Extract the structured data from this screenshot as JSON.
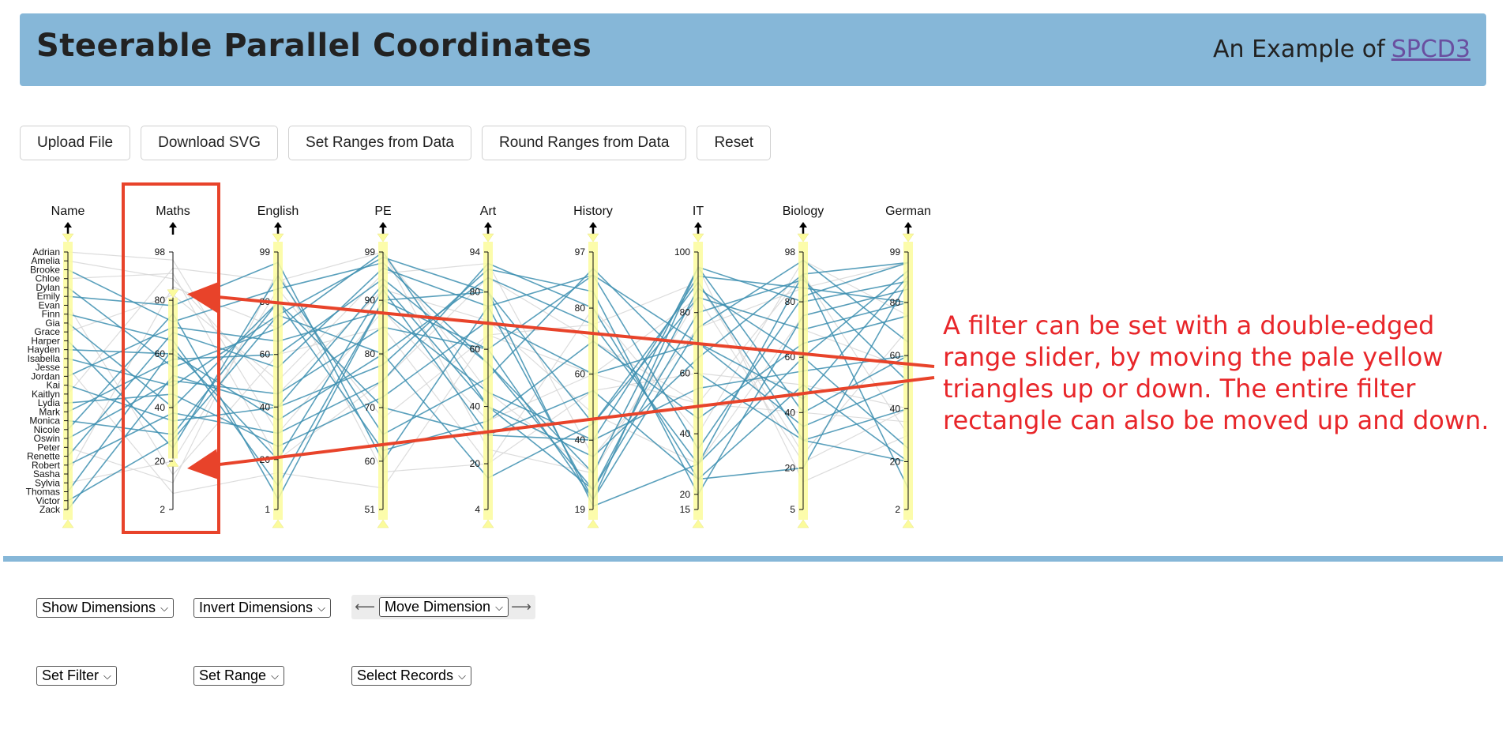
{
  "header": {
    "title": "Steerable Parallel Coordinates",
    "subtitle_prefix": "An Example of",
    "subtitle_link": "SPCD3"
  },
  "toolbar": {
    "upload": "Upload File",
    "download": "Download SVG",
    "set_ranges": "Set Ranges from Data",
    "round_ranges": "Round Ranges from Data",
    "reset": "Reset"
  },
  "controls": {
    "show_dimensions": "Show Dimensions",
    "invert_dimensions": "Invert Dimensions",
    "move_dimension": "Move Dimension",
    "set_filter": "Set Filter",
    "set_range": "Set Range",
    "select_records": "Select Records",
    "move_left_icon": "arrow-left-icon",
    "move_right_icon": "arrow-right-icon"
  },
  "annotation": {
    "lines": [
      "A filter can be set with a double-edged",
      "range slider, by moving the pale yellow",
      "triangles up or down. The entire filter",
      "rectangle can also be moved up and down."
    ]
  },
  "colors": {
    "header_bg": "#86b7d8",
    "selected_line": "#3d8fb0",
    "unselected_line": "#d8d8d8",
    "filter_fill": "#fbfb9c",
    "annotation": "#e8262a",
    "highlight_box": "#e8432a"
  },
  "chart_data": {
    "type": "parallel-coordinates",
    "dimensions": [
      {
        "name": "Name",
        "type": "categorical",
        "values": [
          "Adrian",
          "Amelia",
          "Brooke",
          "Chloe",
          "Dylan",
          "Emily",
          "Evan",
          "Finn",
          "Gia",
          "Grace",
          "Harper",
          "Hayden",
          "Isabella",
          "Jesse",
          "Jordan",
          "Kai",
          "Kaitlyn",
          "Lydia",
          "Mark",
          "Monica",
          "Nicole",
          "Oswin",
          "Peter",
          "Renette",
          "Robert",
          "Sasha",
          "Sylvia",
          "Thomas",
          "Victor",
          "Zack"
        ],
        "filter": null
      },
      {
        "name": "Maths",
        "range": [
          2,
          98
        ],
        "ticks": [
          98,
          80,
          60,
          40,
          20,
          2
        ],
        "filter": [
          21,
          81
        ]
      },
      {
        "name": "English",
        "range": [
          1,
          99
        ],
        "ticks": [
          99,
          80,
          60,
          40,
          20,
          1
        ],
        "filter": null
      },
      {
        "name": "PE",
        "range": [
          51,
          99
        ],
        "ticks": [
          99,
          90,
          80,
          70,
          60,
          51
        ],
        "filter": null
      },
      {
        "name": "Art",
        "range": [
          4,
          94
        ],
        "ticks": [
          94,
          80,
          60,
          40,
          20,
          4
        ],
        "filter": null
      },
      {
        "name": "History",
        "range": [
          19,
          97
        ],
        "ticks": [
          97,
          80,
          60,
          40,
          19
        ],
        "filter": null
      },
      {
        "name": "IT",
        "range": [
          15,
          100
        ],
        "ticks": [
          100,
          80,
          60,
          40,
          20,
          15
        ],
        "filter": null
      },
      {
        "name": "Biology",
        "range": [
          5,
          98
        ],
        "ticks": [
          98,
          80,
          60,
          40,
          20,
          5
        ],
        "filter": null
      },
      {
        "name": "German",
        "range": [
          2,
          99
        ],
        "ticks": [
          99,
          80,
          60,
          40,
          20,
          2
        ],
        "filter": null
      }
    ],
    "records": [
      {
        "name": "Adrian",
        "values": [
          95,
          30,
          88,
          35,
          60,
          85,
          22,
          40
        ]
      },
      {
        "name": "Amelia",
        "values": [
          88,
          45,
          92,
          70,
          48,
          30,
          75,
          85
        ]
      },
      {
        "name": "Brooke",
        "values": [
          72,
          85,
          97,
          55,
          30,
          95,
          40,
          60
        ]
      },
      {
        "name": "Chloe",
        "values": [
          90,
          20,
          75,
          85,
          70,
          50,
          90,
          30
        ]
      },
      {
        "name": "Dylan",
        "values": [
          55,
          70,
          99,
          40,
          25,
          88,
          60,
          92
        ]
      },
      {
        "name": "Emily",
        "values": [
          78,
          95,
          60,
          75,
          90,
          70,
          35,
          50
        ]
      },
      {
        "name": "Evan",
        "values": [
          15,
          60,
          85,
          20,
          80,
          40,
          95,
          75
        ]
      },
      {
        "name": "Finn",
        "values": [
          65,
          10,
          90,
          60,
          22,
          95,
          80,
          88
        ]
      },
      {
        "name": "Gia",
        "values": [
          40,
          80,
          70,
          30,
          55,
          25,
          50,
          20
        ]
      },
      {
        "name": "Grace",
        "values": [
          82,
          50,
          95,
          90,
          35,
          75,
          85,
          95
        ]
      },
      {
        "name": "Harper",
        "values": [
          25,
          90,
          65,
          50,
          92,
          60,
          30,
          40
        ]
      },
      {
        "name": "Hayden",
        "values": [
          60,
          35,
          80,
          15,
          45,
          85,
          70,
          80
        ]
      },
      {
        "name": "Isabella",
        "values": [
          48,
          75,
          98,
          80,
          20,
          30,
          90,
          10
        ]
      },
      {
        "name": "Jesse",
        "values": [
          8,
          15,
          55,
          65,
          75,
          90,
          25,
          70
        ]
      },
      {
        "name": "Jordan",
        "values": [
          70,
          65,
          88,
          45,
          40,
          55,
          55,
          60
        ]
      },
      {
        "name": "Kai",
        "values": [
          35,
          40,
          78,
          88,
          85,
          20,
          75,
          85
        ]
      },
      {
        "name": "Kaitlyn",
        "values": [
          92,
          88,
          99,
          25,
          30,
          95,
          15,
          30
        ]
      },
      {
        "name": "Lydia",
        "values": [
          45,
          25,
          72,
          70,
          60,
          70,
          45,
          90
        ]
      },
      {
        "name": "Mark",
        "values": [
          58,
          60,
          94,
          55,
          25,
          80,
          88,
          50
        ]
      },
      {
        "name": "Monica",
        "values": [
          30,
          80,
          62,
          35,
          70,
          45,
          65,
          75
        ]
      },
      {
        "name": "Nicole",
        "values": [
          75,
          5,
          90,
          80,
          45,
          90,
          30,
          20
        ]
      },
      {
        "name": "Oswin",
        "values": [
          50,
          45,
          85,
          60,
          90,
          35,
          82,
          95
        ]
      },
      {
        "name": "Peter",
        "values": [
          12,
          92,
          58,
          20,
          55,
          60,
          50,
          40
        ]
      },
      {
        "name": "Renette",
        "values": [
          68,
          55,
          96,
          75,
          22,
          75,
          95,
          65
        ]
      },
      {
        "name": "Robert",
        "values": [
          38,
          30,
          75,
          90,
          80,
          25,
          20,
          88
        ]
      },
      {
        "name": "Sasha",
        "values": [
          85,
          70,
          99,
          45,
          30,
          85,
          70,
          55
        ]
      },
      {
        "name": "Sylvia",
        "values": [
          20,
          85,
          68,
          65,
          60,
          50,
          40,
          35
        ]
      },
      {
        "name": "Thomas",
        "values": [
          62,
          20,
          92,
          30,
          40,
          92,
          85,
          80
        ]
      },
      {
        "name": "Victor",
        "values": [
          28,
          75,
          80,
          85,
          75,
          30,
          60,
          25
        ]
      },
      {
        "name": "Zack",
        "values": [
          52,
          40,
          93,
          40,
          35,
          65,
          90,
          95
        ]
      }
    ]
  }
}
